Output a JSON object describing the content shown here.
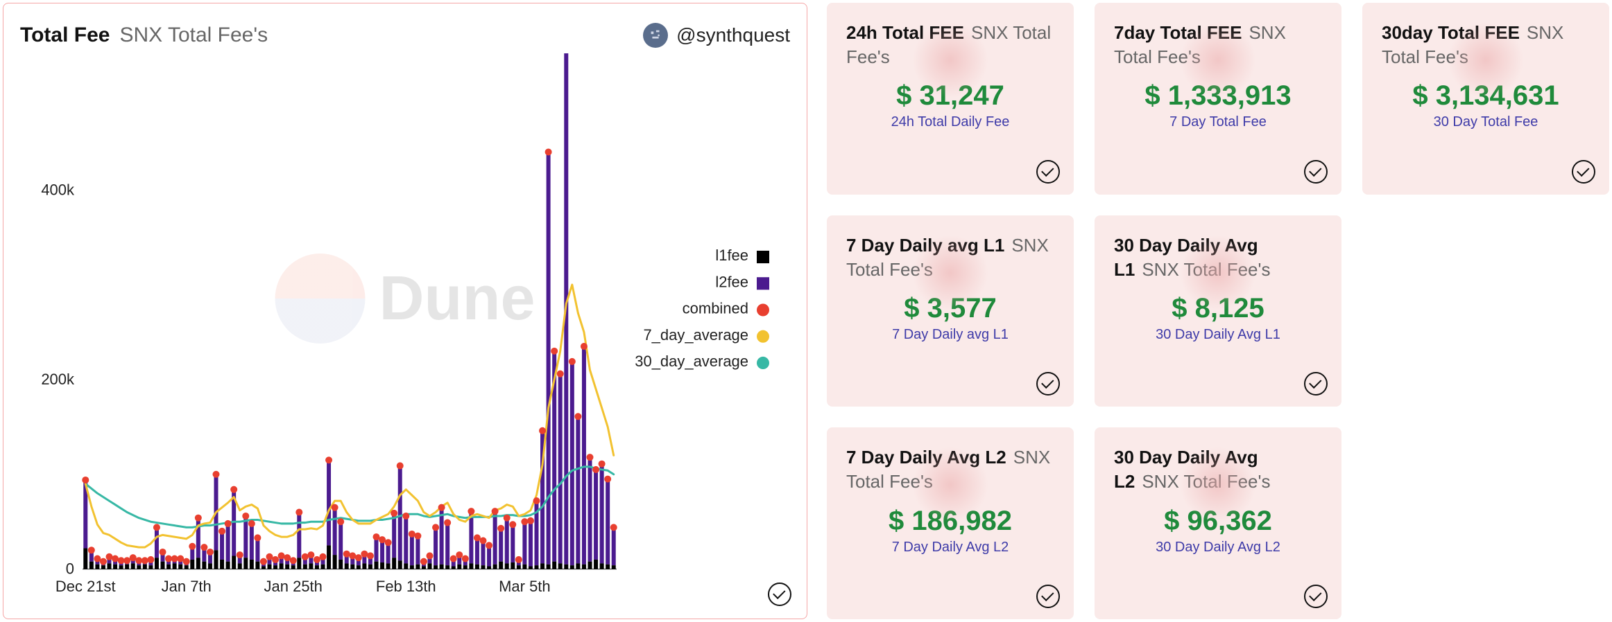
{
  "chart": {
    "title": "Total Fee",
    "subtitle": "SNX Total Fee's",
    "username": "@synthquest",
    "watermark_text": "Dune",
    "type": "bar+line",
    "background_color": "#ffffff",
    "border_color": "#f5a6a6",
    "y_axis": {
      "min": 0,
      "max": 500000,
      "ticks": [
        0,
        200000,
        400000
      ],
      "tick_labels": [
        "0",
        "200k",
        "400k"
      ]
    },
    "x_axis": {
      "tick_idx": [
        0,
        17,
        35,
        54,
        74
      ],
      "tick_labels": [
        "Dec 21st",
        "Jan 7th",
        "Jan 25th",
        "Feb 13th",
        "Mar 5th"
      ]
    },
    "legend": [
      {
        "label": "l1fee",
        "color": "#000000",
        "shape": "square"
      },
      {
        "label": "l2fee",
        "color": "#4b1b8f",
        "shape": "square"
      },
      {
        "label": "combined",
        "color": "#e83f2f",
        "shape": "circle"
      },
      {
        "label": "7_day_average",
        "color": "#f2c230",
        "shape": "circle"
      },
      {
        "label": "30_day_average",
        "color": "#37b8a5",
        "shape": "circle"
      }
    ],
    "colors": {
      "l1fee": "#000000",
      "l2fee": "#4b1b8f",
      "combined_dot": "#e83f2f",
      "avg7": "#f2c230",
      "avg30": "#37b8a5"
    },
    "series": {
      "l1fee": [
        22000,
        8000,
        5000,
        4000,
        6000,
        5000,
        4000,
        5000,
        6000,
        4000,
        5000,
        4000,
        12000,
        8000,
        5000,
        6000,
        5000,
        4000,
        10000,
        12000,
        8000,
        6000,
        20000,
        10000,
        8000,
        14000,
        6000,
        12000,
        10000,
        8000,
        3000,
        5000,
        4000,
        6000,
        5000,
        4000,
        12000,
        5000,
        6000,
        4000,
        5000,
        25000,
        15000,
        10000,
        6000,
        5000,
        4000,
        6000,
        5000,
        8000,
        7000,
        6000,
        12000,
        9000,
        6000,
        4000,
        5000,
        3000,
        6000,
        4000,
        5000,
        4000,
        3000,
        5000,
        4000,
        6000,
        5000,
        4000,
        3000,
        5000,
        8000,
        6000,
        7000,
        4000,
        5000,
        3000,
        4000,
        6000,
        5000,
        8000,
        6000,
        5000,
        4000,
        6000,
        5000,
        8000,
        10000,
        6000,
        5000,
        4000
      ],
      "l2fee": [
        72000,
        12000,
        6000,
        4000,
        7000,
        6000,
        5000,
        4000,
        6000,
        5000,
        4000,
        6000,
        32000,
        10000,
        6000,
        5000,
        6000,
        4000,
        14000,
        42000,
        15000,
        12000,
        80000,
        30000,
        40000,
        70000,
        9000,
        44000,
        38000,
        25000,
        5000,
        8000,
        6000,
        8000,
        7000,
        5000,
        48000,
        8000,
        9000,
        6000,
        8000,
        90000,
        50000,
        40000,
        10000,
        9000,
        8000,
        10000,
        9000,
        26000,
        24000,
        22000,
        47000,
        100000,
        50000,
        33000,
        30000,
        5000,
        8000,
        40000,
        60000,
        45000,
        8000,
        10000,
        7000,
        55000,
        28000,
        26000,
        22000,
        56000,
        35000,
        48000,
        40000,
        6000,
        45000,
        48000,
        68000,
        140000,
        435000,
        222000,
        200000,
        548000,
        215000,
        155000,
        230000,
        110000,
        95000,
        105000,
        90000,
        40000
      ],
      "avg7": [
        90000,
        66000,
        47000,
        38000,
        36000,
        32000,
        28000,
        25000,
        24000,
        23000,
        23000,
        27000,
        34000,
        36000,
        35000,
        34000,
        33000,
        32000,
        36000,
        46000,
        48000,
        49000,
        60000,
        65000,
        70000,
        76000,
        62000,
        66000,
        68000,
        64000,
        46000,
        40000,
        36000,
        34000,
        34000,
        36000,
        42000,
        42000,
        43000,
        42000,
        46000,
        62000,
        72000,
        72000,
        60000,
        52000,
        48000,
        48000,
        48000,
        52000,
        55000,
        58000,
        66000,
        78000,
        84000,
        78000,
        72000,
        60000,
        56000,
        60000,
        66000,
        70000,
        58000,
        52000,
        50000,
        56000,
        58000,
        56000,
        54000,
        62000,
        64000,
        68000,
        66000,
        56000,
        58000,
        62000,
        78000,
        110000,
        170000,
        200000,
        230000,
        280000,
        300000,
        270000,
        250000,
        210000,
        190000,
        170000,
        150000,
        120000
      ],
      "avg30": [
        90000,
        85000,
        80000,
        76000,
        72000,
        68000,
        64000,
        60000,
        57000,
        54000,
        52000,
        50000,
        49000,
        48000,
        47000,
        46000,
        45000,
        44000,
        44000,
        45000,
        46000,
        46000,
        47000,
        48000,
        49000,
        50000,
        50000,
        51000,
        52000,
        52000,
        51000,
        50000,
        49000,
        48000,
        48000,
        48000,
        49000,
        49000,
        50000,
        50000,
        50000,
        52000,
        53000,
        54000,
        53000,
        52000,
        51000,
        51000,
        51000,
        52000,
        52000,
        53000,
        54000,
        56000,
        58000,
        58000,
        58000,
        56000,
        55000,
        56000,
        57000,
        58000,
        56000,
        55000,
        54000,
        55000,
        55000,
        55000,
        55000,
        56000,
        56000,
        57000,
        57000,
        56000,
        56000,
        57000,
        60000,
        66000,
        76000,
        84000,
        90000,
        98000,
        104000,
        106000,
        108000,
        108000,
        106000,
        105000,
        104000,
        100000
      ]
    },
    "bar_width_ratio": 0.7,
    "dot_radius": 5,
    "line_width": 3
  },
  "cards": [
    {
      "title": "24h Total FEE",
      "subtitle": "SNX Total Fee's",
      "value": "$ 31,247",
      "caption": "24h Total Daily Fee"
    },
    {
      "title": "7day Total FEE",
      "subtitle": "SNX Total Fee's",
      "value": "$ 1,333,913",
      "caption": "7 Day Total Fee"
    },
    {
      "title": "30day Total FEE",
      "subtitle": "SNX Total Fee's",
      "value": "$ 3,134,631",
      "caption": "30 Day Total Fee"
    },
    {
      "title": "7 Day Daily avg L1",
      "subtitle": "SNX Total Fee's",
      "value": "$ 3,577",
      "caption": "7 Day Daily avg L1"
    },
    {
      "title": "30 Day Daily Avg L1",
      "subtitle": "SNX Total Fee's",
      "value": "$ 8,125",
      "caption": "30 Day Daily Avg L1"
    },
    null,
    {
      "title": "7 Day Daily Avg L2",
      "subtitle": "SNX Total Fee's",
      "value": "$ 186,982",
      "caption": "7 Day Daily Avg L2"
    },
    {
      "title": "30 Day Daily Avg L2",
      "subtitle": "SNX Total Fee's",
      "value": "$ 96,362",
      "caption": "30 Day Daily Avg L2"
    },
    null
  ],
  "card_style": {
    "bg": "#faeae9",
    "title_color": "#111111",
    "subtitle_color": "#666666",
    "value_color": "#1f8a3b",
    "caption_color": "#3d3aa8"
  }
}
